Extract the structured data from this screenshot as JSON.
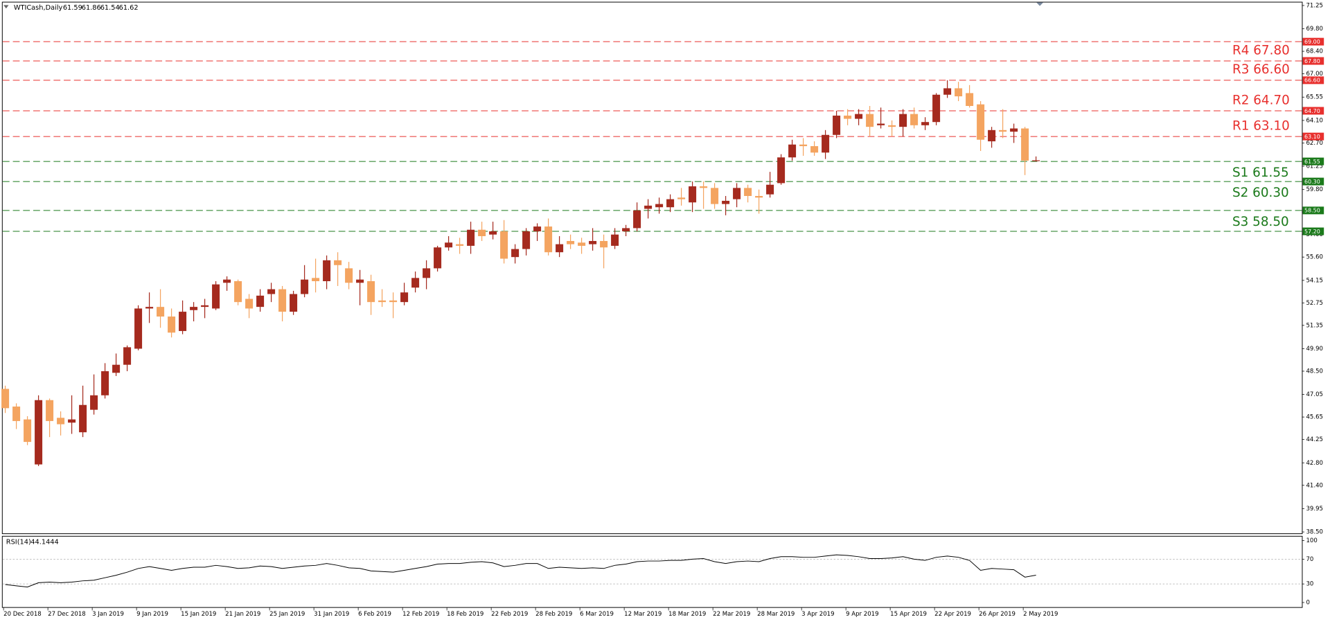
{
  "chart_data": [
    {
      "type": "candlestick",
      "title": "WTICash,Daily",
      "categories": [
        "20 Dec 2018",
        null,
        null,
        null,
        "27 Dec 2018",
        null,
        null,
        null,
        "3 Jan 2019",
        null,
        null,
        null,
        "9 Jan 2019",
        null,
        null,
        null,
        "15 Jan 2019",
        null,
        null,
        null,
        "21 Jan 2019",
        null,
        null,
        null,
        "25 Jan 2019",
        null,
        null,
        null,
        "31 Jan 2019",
        null,
        null,
        null,
        "6 Feb 2019",
        null,
        null,
        null,
        "12 Feb 2019",
        null,
        null,
        null,
        "18 Feb 2019",
        null,
        null,
        null,
        "22 Feb 2019",
        null,
        null,
        null,
        "28 Feb 2019",
        null,
        null,
        null,
        "6 Mar 2019",
        null,
        null,
        null,
        "12 Mar 2019",
        null,
        null,
        null,
        "18 Mar 2019",
        null,
        null,
        null,
        "22 Mar 2019",
        null,
        null,
        null,
        "28 Mar 2019",
        null,
        null,
        null,
        "3 Apr 2019",
        null,
        null,
        null,
        "9 Apr 2019",
        null,
        null,
        null,
        "15 Apr 2019",
        null,
        null,
        null,
        "22 Apr 2019",
        null,
        null,
        null,
        "26 Apr 2019",
        null,
        null,
        null,
        "2 May 2019",
        null
      ],
      "open": [
        47.4,
        46.3,
        45.5,
        42.7,
        46.7,
        45.6,
        45.3,
        44.7,
        46.1,
        47.0,
        48.4,
        48.9,
        49.9,
        52.4,
        52.5,
        51.9,
        51.0,
        52.3,
        52.5,
        52.4,
        54.0,
        54.1,
        53.0,
        52.5,
        53.3,
        53.6,
        52.2,
        53.3,
        54.3,
        54.1,
        55.4,
        54.9,
        54.0,
        54.1,
        52.9,
        52.9,
        52.8,
        53.7,
        54.3,
        54.9,
        56.2,
        56.4,
        56.3,
        57.3,
        57.0,
        57.2,
        55.6,
        56.1,
        57.2,
        57.5,
        55.9,
        56.6,
        56.5,
        56.4,
        56.6,
        56.3,
        57.2,
        57.4,
        58.6,
        58.7,
        58.7,
        59.3,
        59.0,
        60.0,
        59.9,
        58.9,
        59.2,
        59.9,
        59.4,
        59.5,
        60.2,
        61.8,
        62.6,
        62.5,
        62.1,
        63.2,
        64.4,
        64.2,
        64.5,
        63.8,
        63.8,
        63.7,
        64.5,
        63.8,
        64.0,
        65.7,
        66.1,
        65.8,
        65.1,
        62.8,
        63.5,
        63.4,
        63.6,
        61.59
      ],
      "high": [
        47.6,
        46.5,
        45.7,
        47.0,
        46.8,
        46.0,
        47.0,
        47.6,
        48.3,
        49.0,
        49.6,
        50.1,
        52.6,
        53.4,
        53.6,
        52.4,
        52.9,
        52.8,
        53.0,
        54.1,
        54.4,
        54.2,
        53.3,
        53.6,
        54.0,
        53.8,
        53.5,
        55.1,
        55.5,
        55.7,
        55.9,
        55.3,
        54.8,
        54.5,
        53.6,
        53.4,
        54.0,
        54.7,
        55.4,
        56.3,
        56.9,
        56.8,
        57.8,
        57.8,
        57.8,
        57.9,
        56.4,
        57.4,
        57.7,
        58.0,
        56.9,
        57.0,
        56.8,
        57.4,
        57.0,
        57.4,
        57.6,
        59.0,
        59.2,
        59.3,
        59.5,
        59.9,
        60.3,
        60.3,
        60.2,
        59.4,
        60.2,
        60.1,
        59.8,
        60.9,
        62.0,
        62.9,
        63.0,
        62.8,
        63.5,
        64.7,
        64.8,
        64.8,
        65.0,
        64.9,
        64.1,
        64.8,
        64.9,
        64.3,
        65.8,
        66.6,
        66.5,
        66.3,
        65.3,
        63.7,
        64.8,
        63.9,
        63.7,
        61.86
      ],
      "low": [
        45.9,
        44.9,
        43.9,
        42.6,
        44.4,
        44.5,
        44.6,
        44.4,
        45.8,
        46.8,
        48.2,
        48.5,
        49.8,
        51.5,
        51.2,
        50.6,
        50.8,
        51.6,
        51.8,
        52.3,
        53.5,
        52.6,
        51.8,
        52.2,
        52.8,
        51.6,
        52.0,
        53.1,
        53.4,
        53.6,
        53.8,
        53.6,
        52.6,
        52.0,
        52.5,
        51.8,
        52.6,
        53.4,
        53.6,
        54.7,
        56.0,
        55.8,
        55.8,
        56.6,
        56.7,
        55.2,
        55.2,
        55.7,
        56.6,
        55.7,
        55.6,
        56.1,
        55.8,
        56.0,
        54.9,
        56.1,
        56.9,
        57.2,
        58.0,
        58.3,
        58.4,
        58.8,
        58.4,
        58.6,
        58.6,
        58.2,
        58.7,
        59.0,
        58.3,
        59.3,
        60.1,
        61.6,
        61.9,
        61.9,
        61.7,
        63.0,
        63.8,
        63.8,
        63.1,
        63.6,
        63.1,
        63.1,
        63.6,
        63.5,
        63.8,
        65.5,
        65.3,
        64.9,
        62.2,
        62.4,
        63.0,
        62.7,
        60.7,
        61.54
      ],
      "close": [
        46.2,
        45.4,
        44.1,
        46.7,
        45.4,
        45.2,
        45.5,
        46.4,
        47.0,
        48.5,
        48.9,
        49.99,
        52.4,
        52.5,
        51.9,
        50.9,
        52.2,
        52.5,
        52.6,
        53.9,
        54.2,
        52.8,
        52.4,
        53.2,
        53.6,
        52.2,
        53.3,
        54.2,
        54.1,
        55.4,
        55.1,
        54.0,
        54.2,
        52.8,
        52.8,
        52.8,
        53.4,
        54.3,
        54.9,
        56.2,
        56.5,
        56.3,
        57.3,
        56.9,
        57.2,
        55.5,
        56.1,
        57.2,
        57.5,
        55.9,
        56.4,
        56.4,
        56.3,
        56.6,
        56.2,
        57.0,
        57.4,
        58.5,
        58.8,
        58.9,
        59.2,
        59.2,
        60.0,
        59.9,
        58.9,
        59.1,
        59.9,
        59.4,
        59.3,
        60.1,
        61.8,
        62.6,
        62.5,
        62.1,
        63.2,
        64.4,
        64.2,
        64.5,
        63.7,
        63.9,
        63.7,
        64.5,
        63.8,
        64.0,
        65.7,
        66.1,
        65.6,
        65.0,
        62.9,
        63.5,
        63.4,
        63.6,
        61.6,
        61.62
      ],
      "up_color": "#a52a1e",
      "down_color": "#f4a460",
      "ylim": [
        38.39,
        71.46
      ],
      "yticks": [
        71.25,
        {
          "value": 69.8,
          "label": "69.80"
        },
        {
          "value": 68.4,
          "label": "68.40"
        },
        {
          "value": 67,
          "label": "67.00"
        },
        65.55,
        {
          "value": 64.1,
          "label": "64.10"
        },
        {
          "value": 62.7,
          "label": "62.70"
        },
        61.25,
        {
          "value": 59.8,
          "label": "59.80"
        },
        {
          "value": 58.4,
          "label": "58.40"
        },
        {
          "value": 57,
          "label": "57.00"
        },
        {
          "value": 55.6,
          "label": "55.60"
        },
        54.15,
        52.75,
        51.35,
        {
          "value": 49.9,
          "label": "49.90"
        },
        {
          "value": 48.5,
          "label": "48.50"
        },
        47.05,
        45.65,
        44.25,
        {
          "value": 42.8,
          "label": "42.80"
        },
        {
          "value": 41.4,
          "label": "41.40"
        },
        39.95,
        {
          "value": 38.5,
          "label": "38.50"
        }
      ],
      "levels": [
        {
          "value": 69,
          "tag": "69.00",
          "color": "#e8302e"
        },
        {
          "value": 67.8,
          "tag": "67.80",
          "label": "R4 67.80",
          "color": "#e8302e"
        },
        {
          "value": 66.6,
          "tag": "66.60",
          "label": "R3 66.60",
          "color": "#e8302e"
        },
        {
          "value": 64.7,
          "tag": "64.70",
          "label": "R2 64.70",
          "color": "#e8302e"
        },
        {
          "value": 63.1,
          "tag": "63.10",
          "label": "R1 63.10",
          "color": "#e8302e"
        },
        {
          "value": 61.55,
          "tag": "61.55",
          "label": "S1  61.55",
          "color": "#1b7a1b"
        },
        {
          "value": 60.3,
          "tag": "60.30",
          "label": "S2  60.30",
          "color": "#1b7a1b"
        },
        {
          "value": 58.5,
          "tag": "58.50",
          "label": "S3 58.50",
          "color": "#1b7a1b"
        },
        {
          "value": 57.2,
          "tag": "57.20",
          "color": "#1b7a1b"
        }
      ]
    },
    {
      "type": "line",
      "title": "RSI(14)",
      "color": "#000000",
      "values": [
        29,
        27,
        25,
        32,
        33,
        32,
        33,
        35,
        36,
        40,
        44,
        49,
        55,
        58,
        55,
        52,
        55,
        57,
        57,
        60,
        58,
        55,
        56,
        59,
        58,
        55,
        57,
        59,
        60,
        63,
        60,
        56,
        55,
        51,
        50,
        49,
        52,
        55,
        58,
        62,
        63,
        63,
        65,
        66,
        64,
        58,
        60,
        63,
        63,
        55,
        57,
        56,
        55,
        56,
        55,
        60,
        62,
        66,
        67,
        67,
        68,
        68,
        70,
        71,
        66,
        63,
        66,
        67,
        66,
        71,
        74,
        74,
        73,
        73,
        75,
        77,
        76,
        74,
        71,
        71,
        72,
        74,
        70,
        68,
        73,
        75,
        73,
        68,
        52,
        55,
        54,
        53,
        41,
        44.1444
      ],
      "ylim": [
        -8,
        107
      ],
      "yticks": [
        100,
        70,
        30,
        0
      ],
      "levels": [
        70,
        30
      ]
    }
  ]
}
